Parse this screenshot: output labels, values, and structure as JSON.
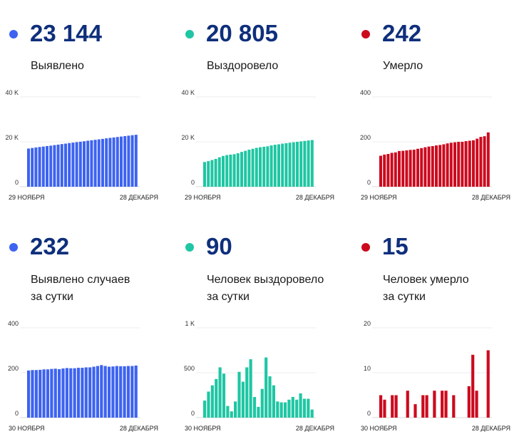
{
  "colors": {
    "blue": "#3d63f0",
    "teal": "#1fc6a3",
    "red": "#cc0a1e",
    "grid": "#eeeeee",
    "number": "#0f2f7c"
  },
  "panels": [
    {
      "number": "23 144",
      "label": [
        "Выявлено"
      ]
    },
    {
      "number": "20 805",
      "label": [
        "Выздоровело"
      ]
    },
    {
      "number": "242",
      "label": [
        "Умерло"
      ]
    },
    {
      "number": "232",
      "label": [
        "Выявлено случаев",
        "за сутки"
      ]
    },
    {
      "number": "90",
      "label": [
        "Человек выздоровело",
        "за сутки"
      ]
    },
    {
      "number": "15",
      "label": [
        "Человек умерло",
        "за сутки"
      ]
    }
  ],
  "chart_data": [
    {
      "type": "bar",
      "color": "blue",
      "ylim": [
        0,
        40000
      ],
      "yticks": [
        0,
        20000,
        40000
      ],
      "ytick_labels": [
        "0",
        "20 K",
        "40 K"
      ],
      "x_start_label": "29 НОЯБРЯ",
      "x_end_label": "28 ДЕКАБРЯ",
      "values": [
        17000,
        17250,
        17500,
        17700,
        17900,
        18100,
        18300,
        18550,
        18750,
        19000,
        19200,
        19450,
        19650,
        19850,
        20050,
        20250,
        20500,
        20700,
        20900,
        21100,
        21300,
        21550,
        21750,
        21950,
        22150,
        22350,
        22550,
        22750,
        22950,
        23144
      ]
    },
    {
      "type": "bar",
      "color": "teal",
      "ylim": [
        0,
        40000
      ],
      "yticks": [
        0,
        20000,
        40000
      ],
      "ytick_labels": [
        "0",
        "20 K",
        "40 K"
      ],
      "x_start_label": "29 НОЯБРЯ",
      "x_end_label": "28 ДЕКАБРЯ",
      "values": [
        11000,
        11400,
        11900,
        12400,
        13100,
        13700,
        14100,
        14300,
        14500,
        14900,
        15500,
        16000,
        16500,
        16900,
        17300,
        17600,
        17800,
        18000,
        18400,
        18700,
        18900,
        19200,
        19400,
        19600,
        19800,
        20000,
        20200,
        20400,
        20600,
        20805
      ]
    },
    {
      "type": "bar",
      "color": "red",
      "ylim": [
        0,
        400
      ],
      "yticks": [
        0,
        200,
        400
      ],
      "ytick_labels": [
        "0",
        "200",
        "400"
      ],
      "x_start_label": "29 НОЯБРЯ",
      "x_end_label": "28 ДЕКАБРЯ",
      "values": [
        138,
        143,
        146,
        151,
        153,
        159,
        160,
        162,
        164,
        165,
        169,
        172,
        176,
        179,
        181,
        184,
        186,
        189,
        193,
        196,
        198,
        200,
        200,
        203,
        205,
        207,
        214,
        222,
        225,
        242
      ]
    },
    {
      "type": "bar",
      "color": "blue",
      "ylim": [
        0,
        400
      ],
      "yticks": [
        0,
        200,
        400
      ],
      "ytick_labels": [
        "0",
        "200",
        "400"
      ],
      "x_start_label": "30 НОЯБРЯ",
      "x_end_label": "28 ДЕКАБРЯ",
      "values": [
        210,
        212,
        212,
        213,
        215,
        215,
        217,
        218,
        216,
        219,
        221,
        220,
        220,
        222,
        222,
        224,
        224,
        227,
        230,
        234,
        230,
        227,
        228,
        230,
        229,
        229,
        230,
        230,
        232
      ]
    },
    {
      "type": "bar",
      "color": "teal",
      "ylim": [
        0,
        1000
      ],
      "yticks": [
        0,
        500,
        1000
      ],
      "ytick_labels": [
        "0",
        "500",
        "1 K"
      ],
      "x_start_label": "30 НОЯБРЯ",
      "x_end_label": "28 ДЕКАБРЯ",
      "values": [
        190,
        290,
        360,
        430,
        560,
        490,
        130,
        70,
        180,
        510,
        400,
        560,
        650,
        230,
        120,
        320,
        670,
        460,
        360,
        180,
        170,
        170,
        200,
        230,
        200,
        270,
        210,
        210,
        90
      ]
    },
    {
      "type": "bar",
      "color": "red",
      "ylim": [
        0,
        20
      ],
      "yticks": [
        0,
        10,
        20
      ],
      "ytick_labels": [
        "0",
        "10",
        "20"
      ],
      "x_start_label": "30 НОЯБРЯ",
      "x_end_label": "28 ДЕКАБРЯ",
      "values": [
        5,
        4,
        0,
        5,
        5,
        0,
        0,
        6,
        0,
        3,
        0,
        5,
        5,
        0,
        6,
        0,
        6,
        6,
        0,
        5,
        0,
        0,
        0,
        7,
        14,
        6,
        0,
        0,
        15
      ]
    }
  ]
}
